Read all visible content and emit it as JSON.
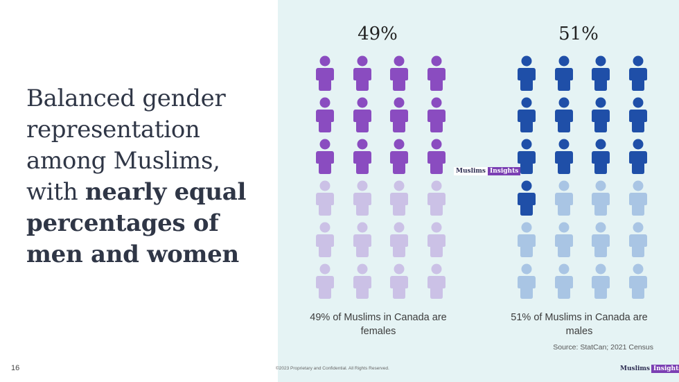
{
  "slide": {
    "headline_regular": "Balanced gender representation among Muslims, with ",
    "headline_bold": "nearly equal percentages of men and women",
    "page_number": "16",
    "footer": "©2023 Proprietary and Confidential. All Rights Reserved."
  },
  "brand": {
    "part1": "Muslims",
    "part2": "Insights"
  },
  "infographic": {
    "female": {
      "percent_label": "49%",
      "caption": "49% of Muslims in Canada are females",
      "filled_icons": 12,
      "total_icons": 24,
      "filled_color": "#8a4cc0",
      "empty_color": "#cbc1e6"
    },
    "male": {
      "percent_label": "51%",
      "caption": "51% of Muslims in Canada are males",
      "filled_icons": 13,
      "total_icons": 24,
      "filled_color": "#1f4fa8",
      "empty_color": "#a9c5e4"
    },
    "source": "Source: StatCan; 2021 Census"
  },
  "icons": {
    "person": "person-icon"
  }
}
